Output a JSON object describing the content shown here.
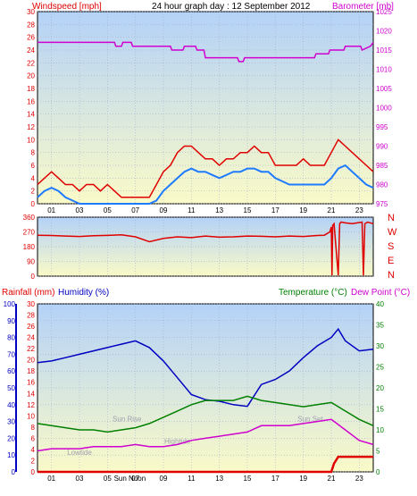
{
  "header": {
    "left_label": "Windspeed [mph]",
    "title": "24 hour graph day : 12 September 2012",
    "right_label": "Barometer [mb]"
  },
  "colors": {
    "wind_gust": "#e00000",
    "wind_avg": "#1e7bff",
    "barometer": "#d000d0",
    "direction": "#e00000",
    "rain": "#e00000",
    "humidity": "#0000c0",
    "temperature": "#008000",
    "dewpoint": "#d000d0",
    "bg_top": "#b4d2f8",
    "bg_bottom": "#fafac8",
    "grid": "#9aa6c8"
  },
  "compass": [
    "N",
    "W",
    "S",
    "E",
    "N"
  ],
  "bottom_labels": {
    "rain": "Rainfall (mm)",
    "humidity": "Humidity (%)",
    "temperature": "Temperature (°C)",
    "dewpoint": "Dew Point (°C)"
  },
  "annotations": [
    {
      "text": "Lowtide",
      "x": 3.0,
      "y": 3
    },
    {
      "text": "Sun Rise",
      "x": 6.4,
      "y": 9
    },
    {
      "text": "Hightide",
      "x": 10.0,
      "y": 5
    },
    {
      "text": "Sun Set",
      "x": 19.5,
      "y": 9
    },
    {
      "text": "Sun Noon",
      "x": 6.6,
      "y": -2
    }
  ],
  "chart_data": [
    {
      "type": "line",
      "name": "wind_barometer",
      "x_ticks": [
        "01",
        "03",
        "05",
        "07",
        "09",
        "11",
        "13",
        "15",
        "17",
        "19",
        "21",
        "23"
      ],
      "xlim": [
        0,
        24
      ],
      "left_axis": {
        "label": "Windspeed [mph]",
        "ylim": [
          0,
          30
        ],
        "ticks": [
          0,
          2,
          4,
          6,
          8,
          10,
          12,
          14,
          16,
          18,
          20,
          22,
          24,
          26,
          28,
          30
        ]
      },
      "right_axis": {
        "label": "Barometer [mb]",
        "ylim": [
          975,
          1025
        ],
        "ticks": [
          975,
          980,
          985,
          990,
          995,
          1000,
          1005,
          1010,
          1015,
          1020,
          1025
        ]
      },
      "series": [
        {
          "name": "gust",
          "axis": "left",
          "x": [
            0,
            0.5,
            1,
            1.5,
            2,
            2.5,
            3,
            3.5,
            4,
            4.5,
            5,
            5.5,
            6,
            6.5,
            7,
            7.5,
            8,
            8.5,
            9,
            9.5,
            10,
            10.5,
            11,
            11.5,
            12,
            12.5,
            13,
            13.5,
            14,
            14.5,
            15,
            15.5,
            16,
            16.5,
            17,
            17.5,
            18,
            18.5,
            19,
            19.5,
            20,
            20.5,
            21,
            21.5,
            22,
            22.5,
            23,
            23.5,
            24
          ],
          "values": [
            3,
            4,
            5,
            4,
            3,
            3,
            2,
            3,
            3,
            2,
            3,
            2,
            1,
            1,
            1,
            1,
            1,
            3,
            5,
            6,
            8,
            9,
            9,
            8,
            7,
            7,
            6,
            7,
            7,
            8,
            8,
            9,
            8,
            8,
            6,
            6,
            6,
            6,
            7,
            6,
            6,
            6,
            8,
            10,
            9,
            8,
            7,
            6,
            5
          ]
        },
        {
          "name": "average",
          "axis": "left",
          "x": [
            0,
            0.5,
            1,
            1.5,
            2,
            2.5,
            3,
            3.5,
            4,
            4.5,
            5,
            5.5,
            6,
            6.5,
            7,
            7.5,
            8,
            8.5,
            9,
            9.5,
            10,
            10.5,
            11,
            11.5,
            12,
            12.5,
            13,
            13.5,
            14,
            14.5,
            15,
            15.5,
            16,
            16.5,
            17,
            17.5,
            18,
            18.5,
            19,
            19.5,
            20,
            20.5,
            21,
            21.5,
            22,
            22.5,
            23,
            23.5,
            24
          ],
          "values": [
            1,
            2,
            2.5,
            2,
            1,
            0.5,
            0,
            0,
            0,
            0,
            0,
            0,
            0,
            0,
            0,
            0,
            0,
            0.5,
            2,
            3,
            4,
            5,
            5.5,
            5,
            5,
            4.5,
            4,
            4.5,
            5,
            5,
            5.5,
            5.5,
            5,
            5,
            4,
            3.5,
            3,
            3,
            3,
            3,
            3,
            3,
            4,
            5.5,
            6,
            5,
            4,
            3,
            2.5
          ]
        },
        {
          "name": "barometer",
          "axis": "right",
          "x": [
            0,
            5.5,
            5.6,
            6.0,
            6.1,
            6.7,
            6.8,
            9.5,
            9.6,
            10.4,
            10.5,
            11.3,
            11.4,
            11.9,
            12.0,
            14.3,
            14.4,
            14.7,
            14.8,
            19.8,
            19.9,
            20.8,
            20.9,
            21.9,
            22.0,
            23.1,
            23.2,
            23.8,
            24
          ],
          "values": [
            1017,
            1017,
            1016,
            1016,
            1017,
            1017,
            1016,
            1016,
            1015,
            1015,
            1016,
            1016,
            1015,
            1015,
            1013,
            1013,
            1012,
            1012,
            1013,
            1013,
            1014,
            1014,
            1015,
            1015,
            1016,
            1016,
            1015,
            1016,
            1017
          ]
        }
      ]
    },
    {
      "type": "line",
      "name": "wind_direction",
      "x_ticks": [],
      "xlim": [
        0,
        24
      ],
      "left_axis": {
        "label": "",
        "ylim": [
          0,
          360
        ],
        "ticks": [
          0,
          90,
          180,
          270,
          360
        ]
      },
      "series": [
        {
          "name": "direction",
          "axis": "left",
          "x": [
            0,
            1,
            2,
            3,
            4,
            5,
            6,
            7,
            8,
            9,
            10,
            11,
            12,
            13,
            14,
            15,
            16,
            17,
            18,
            19,
            20,
            20.5,
            20.9,
            21.0,
            21.05,
            21.1,
            21.2,
            21.5,
            21.6,
            21.7,
            22,
            22.5,
            23.2,
            23.3,
            23.4,
            23.6,
            24
          ],
          "values": [
            250,
            248,
            245,
            242,
            247,
            249,
            252,
            240,
            210,
            230,
            240,
            235,
            245,
            238,
            240,
            245,
            243,
            240,
            245,
            242,
            248,
            250,
            270,
            300,
            5,
            310,
            320,
            5,
            320,
            330,
            325,
            320,
            330,
            5,
            320,
            330,
            320
          ]
        }
      ]
    },
    {
      "type": "line",
      "name": "rain_humidity_temperature",
      "x_ticks": [
        "01",
        "03",
        "05",
        "07",
        "09",
        "11",
        "13",
        "15",
        "17",
        "19",
        "21",
        "23"
      ],
      "xlim": [
        0,
        24
      ],
      "humidity_axis": {
        "label": "Humidity (%)",
        "ylim": [
          0,
          100
        ],
        "ticks": [
          0,
          10,
          20,
          30,
          40,
          50,
          60,
          70,
          80,
          90,
          100
        ]
      },
      "rain_axis": {
        "label": "Rainfall (mm)",
        "ylim": [
          0,
          30
        ],
        "ticks": [
          0,
          2,
          4,
          6,
          8,
          10,
          12,
          14,
          16,
          18,
          20,
          22,
          24,
          26,
          28,
          30
        ]
      },
      "temperature_axis": {
        "label": "Temperature (°C)",
        "ylim": [
          0,
          40
        ],
        "ticks": [
          0,
          5,
          10,
          15,
          20,
          25,
          30,
          35,
          40
        ]
      },
      "series": [
        {
          "name": "humidity",
          "axis": "humidity",
          "x": [
            0,
            1,
            2,
            3,
            4,
            5,
            6,
            7,
            8,
            9,
            10,
            11,
            12,
            13,
            14,
            15,
            16,
            17,
            18,
            19,
            20,
            21,
            21.5,
            22,
            23,
            24
          ],
          "values": [
            65,
            66,
            68,
            70,
            72,
            74,
            76,
            78,
            74,
            66,
            56,
            46,
            43,
            42,
            40,
            39,
            52,
            55,
            60,
            68,
            75,
            80,
            85,
            78,
            72,
            73
          ]
        },
        {
          "name": "temperature",
          "axis": "temperature",
          "x": [
            0,
            1,
            2,
            3,
            4,
            5,
            6,
            7,
            8,
            9,
            10,
            11,
            12,
            13,
            14,
            15,
            16,
            17,
            18,
            19,
            20,
            21,
            22,
            23,
            24
          ],
          "values": [
            11.5,
            11,
            10.5,
            10,
            10,
            9.5,
            10,
            10.5,
            11.5,
            13,
            14.5,
            16,
            17,
            17,
            17,
            18,
            17,
            16.5,
            16,
            15.5,
            16,
            16.5,
            14.5,
            12.5,
            11
          ]
        },
        {
          "name": "dewpoint",
          "axis": "temperature",
          "x": [
            0,
            1,
            2,
            3,
            4,
            5,
            6,
            7,
            8,
            9,
            10,
            11,
            12,
            13,
            14,
            15,
            16,
            17,
            18,
            19,
            20,
            21,
            22,
            23,
            24
          ],
          "values": [
            5,
            5.5,
            5.5,
            5.5,
            6,
            6,
            6,
            6.5,
            6,
            6,
            6.5,
            7.5,
            8,
            8.5,
            9,
            9.5,
            11,
            11,
            11,
            11.5,
            12,
            12.5,
            10,
            7.5,
            6.5
          ]
        },
        {
          "name": "rain",
          "axis": "rain",
          "x": [
            0,
            21.0,
            21.2,
            21.5,
            22,
            23.5,
            24
          ],
          "values": [
            0,
            0,
            1.5,
            2.7,
            2.7,
            2.7,
            2.7
          ]
        }
      ]
    }
  ]
}
